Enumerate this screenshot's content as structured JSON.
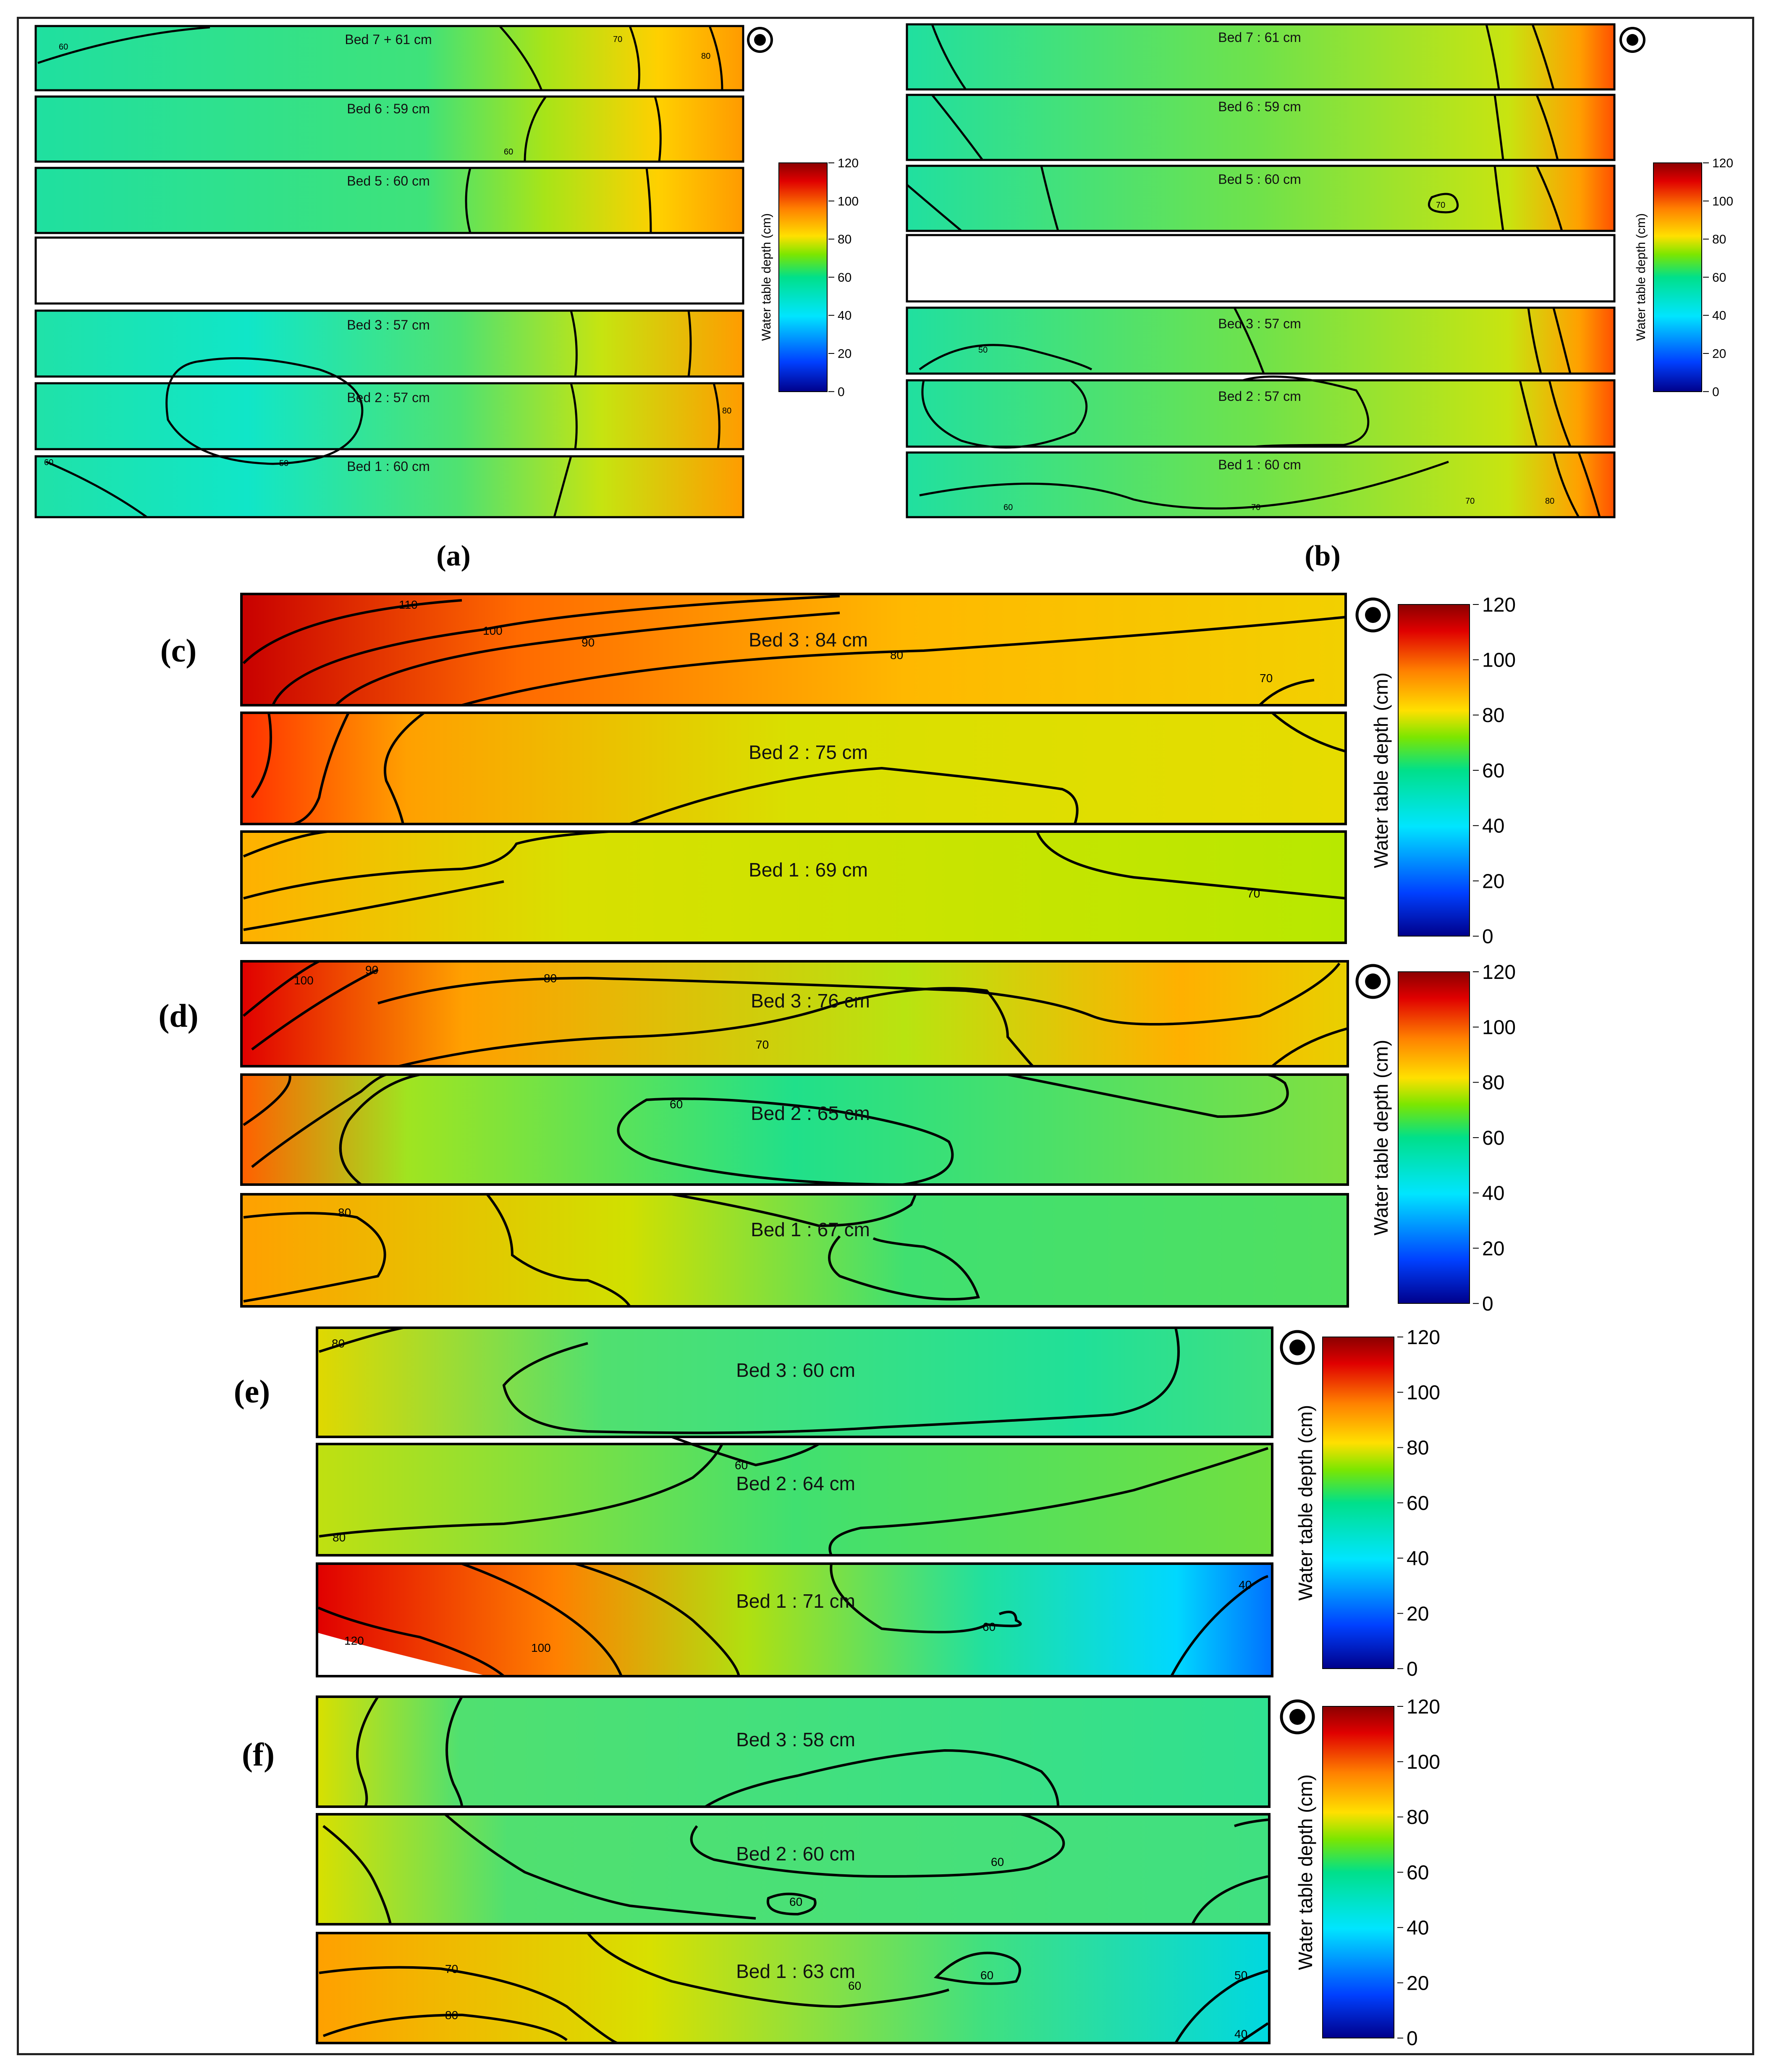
{
  "colorbar": {
    "title": "Water table depth (cm)",
    "ticks": [
      "120",
      "100",
      "80",
      "60",
      "40",
      "20",
      "0"
    ]
  },
  "panels": [
    {
      "label": "(a)",
      "beds": [
        "Bed 7 + 61 cm",
        "Bed 6 : 59 cm",
        "Bed 5 : 60 cm",
        "",
        "Bed 3 : 57 cm",
        "Bed 2 : 57 cm",
        "Bed 1 : 60 cm"
      ],
      "contour_labels": [
        "60",
        "70",
        "80",
        "50",
        "60",
        "80",
        "60"
      ]
    },
    {
      "label": "(b)",
      "beds": [
        "Bed 7 : 61 cm",
        "Bed 6 : 59 cm",
        "Bed 5 : 60 cm",
        "",
        "Bed 3 : 57 cm",
        "Bed 2 : 57 cm",
        "Bed 1 : 60 cm"
      ],
      "contour_labels": [
        "70",
        "50",
        "60",
        "70",
        "70",
        "80"
      ]
    },
    {
      "label": "(c)",
      "beds": [
        "Bed 3 : 84 cm",
        "Bed 2 : 75 cm",
        "Bed 1 : 69 cm"
      ],
      "contour_labels": [
        "110",
        "100",
        "90",
        "80",
        "70",
        "70"
      ]
    },
    {
      "label": "(d)",
      "beds": [
        "Bed 3 : 76 cm",
        "Bed 2 : 65 cm",
        "Bed 1 : 67 cm"
      ],
      "contour_labels": [
        "100",
        "90",
        "80",
        "70",
        "60",
        "80"
      ]
    },
    {
      "label": "(e)",
      "beds": [
        "Bed 3 : 60 cm",
        "Bed 2 : 64 cm",
        "Bed 1 : 71 cm"
      ],
      "contour_labels": [
        "80",
        "60",
        "80",
        "120",
        "100",
        "60",
        "40"
      ]
    },
    {
      "label": "(f)",
      "beds": [
        "Bed 3 : 58 cm",
        "Bed 2 : 60 cm",
        "Bed 1 : 63 cm"
      ],
      "contour_labels": [
        "60",
        "60",
        "70",
        "80",
        "60",
        "60",
        "50",
        "40"
      ]
    }
  ],
  "colors": {
    "scale": [
      "#00008B",
      "#0040FF",
      "#00E5FF",
      "#00E08A",
      "#7CE600",
      "#FFE000",
      "#FF8000",
      "#E00000",
      "#8B0000"
    ]
  }
}
